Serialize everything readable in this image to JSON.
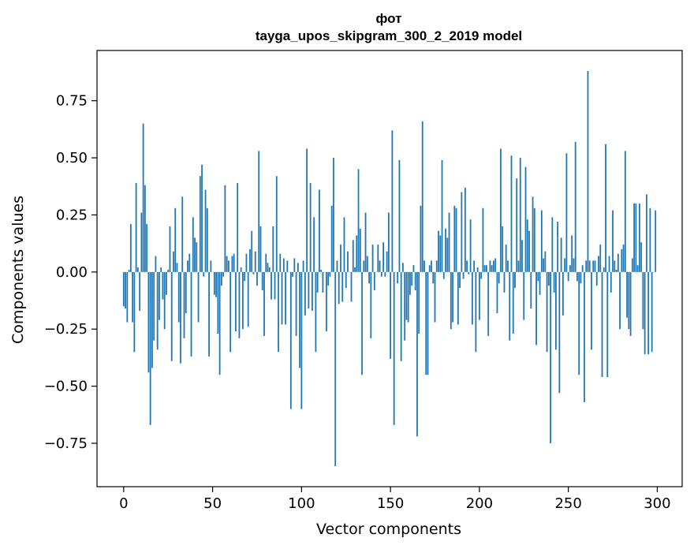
{
  "chart_data": {
    "type": "bar",
    "title": "фот",
    "subtitle": "tayga_upos_skipgram_300_2_2019 model",
    "xlabel": "Vector components",
    "ylabel": "Components values",
    "xlim": [
      -15,
      314
    ],
    "ylim": [
      -0.94,
      0.97
    ],
    "xticks": [
      0,
      50,
      100,
      150,
      200,
      250,
      300
    ],
    "xtick_labels": [
      "0",
      "50",
      "100",
      "150",
      "200",
      "250",
      "300"
    ],
    "yticks": [
      0.75,
      0.5,
      0.25,
      0.0,
      -0.25,
      -0.5,
      -0.75
    ],
    "ytick_labels": [
      "0.75",
      "0.50",
      "0.25",
      "0.00",
      "−0.25",
      "−0.50",
      "−0.75"
    ],
    "grid": false,
    "series": [
      {
        "color": "#1f77b4",
        "values": [
          -0.15,
          -0.16,
          -0.22,
          0.01,
          0.21,
          -0.22,
          -0.35,
          0.39,
          0.02,
          -0.17,
          0.26,
          0.65,
          0.38,
          0.21,
          -0.44,
          -0.67,
          -0.42,
          -0.3,
          0.07,
          -0.34,
          -0.21,
          0.02,
          -0.12,
          -0.25,
          -0.1,
          0.01,
          0.2,
          -0.39,
          0.09,
          0.28,
          0.04,
          -0.22,
          -0.4,
          0.33,
          -0.29,
          -0.18,
          0.05,
          0.08,
          -0.37,
          0.24,
          0.15,
          0.13,
          -0.22,
          0.42,
          0.47,
          -0.02,
          0.36,
          0.28,
          -0.37,
          0.05,
          0.0,
          -0.1,
          -0.11,
          -0.27,
          -0.45,
          -0.06,
          -0.02,
          0.38,
          0.07,
          0.05,
          -0.35,
          0.07,
          0.08,
          -0.26,
          0.39,
          -0.29,
          0.02,
          -0.25,
          -0.04,
          0.08,
          -0.24,
          0.1,
          0.18,
          -0.01,
          0.09,
          -0.06,
          0.53,
          0.2,
          -0.08,
          -0.28,
          0.08,
          0.04,
          0.02,
          -0.12,
          0.2,
          -0.12,
          0.42,
          -0.35,
          0.08,
          -0.23,
          0.06,
          -0.23,
          0.05,
          0.0,
          -0.6,
          -0.02,
          0.06,
          -0.28,
          0.04,
          -0.42,
          -0.6,
          0.05,
          -0.19,
          0.54,
          -0.16,
          0.39,
          -0.17,
          0.24,
          -0.35,
          -0.09,
          0.36,
          0.01,
          -0.09,
          0.0,
          -0.26,
          -0.06,
          -0.02,
          0.29,
          0.5,
          -0.85,
          0.05,
          -0.14,
          0.12,
          -0.13,
          0.24,
          -0.07,
          0.09,
          0.0,
          -0.13,
          0.14,
          0.02,
          0.16,
          0.45,
          0.19,
          -0.45,
          0.05,
          0.26,
          0.07,
          -0.05,
          -0.29,
          0.12,
          -0.08,
          0.0,
          0.12,
          0.05,
          -0.02,
          0.13,
          -0.02,
          0.09,
          0.26,
          -0.38,
          0.62,
          -0.67,
          0.0,
          -0.05,
          0.49,
          -0.39,
          0.04,
          -0.3,
          -0.21,
          -0.22,
          -0.1,
          -0.06,
          0.03,
          -0.08,
          -0.72,
          -0.27,
          0.29,
          0.66,
          0.05,
          -0.45,
          -0.45,
          0.03,
          0.05,
          -0.05,
          -0.22,
          0.05,
          0.18,
          0.16,
          0.49,
          -0.03,
          0.19,
          0.15,
          0.26,
          -0.25,
          -0.22,
          0.29,
          0.28,
          -0.23,
          -0.07,
          0.35,
          -0.03,
          0.37,
          0.05,
          -0.01,
          0.23,
          -0.23,
          0.05,
          -0.35,
          0.02,
          -0.21,
          -0.03,
          0.28,
          0.03,
          0.03,
          -0.28,
          0.05,
          0.03,
          0.05,
          0.06,
          -0.18,
          -0.05,
          0.54,
          0.2,
          -0.09,
          0.12,
          0.05,
          -0.3,
          0.51,
          -0.27,
          -0.07,
          0.41,
          0.05,
          0.5,
          0.14,
          -0.21,
          0.46,
          0.23,
          0.18,
          -0.16,
          0.33,
          0.28,
          -0.32,
          -0.04,
          -0.1,
          0.27,
          0.06,
          0.09,
          -0.35,
          -0.06,
          -0.75,
          0.24,
          -0.09,
          -0.34,
          0.22,
          -0.53,
          0.15,
          -0.19,
          0.06,
          0.52,
          -0.04,
          0.03,
          0.16,
          0.06,
          0.57,
          -0.04,
          -0.45,
          -0.05,
          0.03,
          -0.57,
          0.05,
          0.88,
          0.05,
          -0.34,
          0.05,
          0.05,
          -0.06,
          0.07,
          0.12,
          -0.46,
          0.02,
          0.56,
          -0.46,
          0.07,
          -0.09,
          0.27,
          0.05,
          0.01,
          0.08,
          -0.25,
          0.1,
          0.12,
          0.53,
          -0.2,
          -0.25,
          -0.28,
          0.06,
          0.3,
          0.3,
          0.03,
          0.3,
          0.13,
          -0.25,
          -0.36,
          0.34,
          -0.36,
          0.28,
          -0.35,
          0.0,
          0.27
        ]
      }
    ]
  }
}
